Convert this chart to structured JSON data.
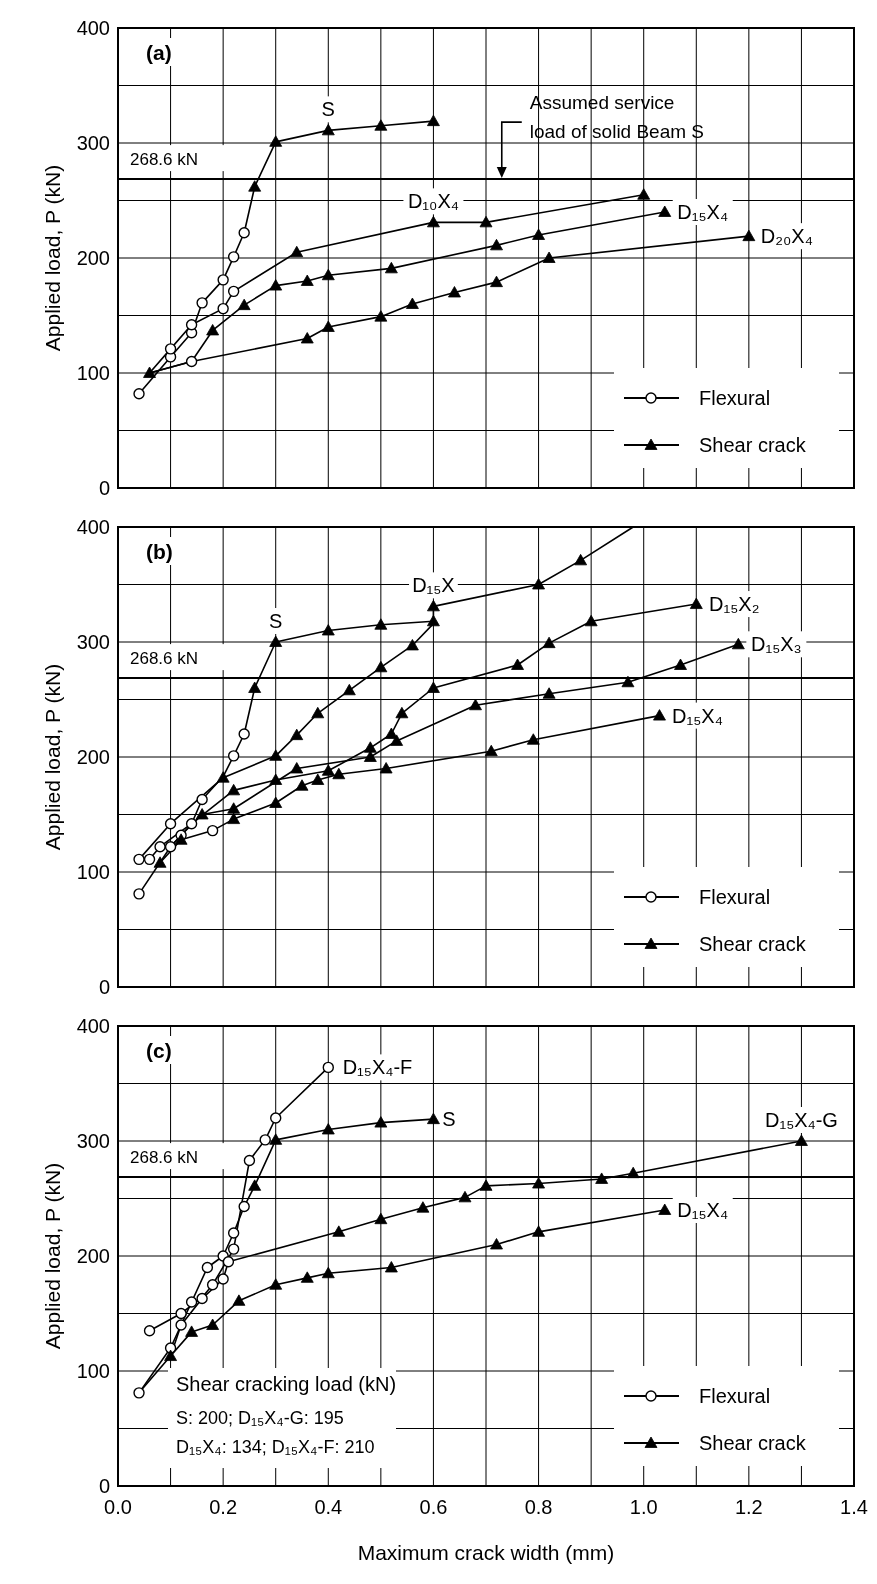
{
  "chart_data": [
    {
      "type": "line",
      "title": "(a)",
      "ylabel": "Applied load, P (kN)",
      "xlim": [
        0,
        1.4
      ],
      "ylim": [
        0,
        400
      ],
      "xticks": [
        0,
        0.1,
        0.2,
        0.3,
        0.4,
        0.5,
        0.6,
        0.7,
        0.8,
        0.9,
        1.0,
        1.1,
        1.2,
        1.3,
        1.4
      ],
      "yticks": [
        0,
        {
          "value": 50,
          "label": null
        },
        100,
        {
          "value": 150,
          "label": null
        },
        200,
        {
          "value": 250,
          "label": null
        },
        300,
        {
          "value": 350,
          "label": null
        },
        400
      ],
      "grid": true,
      "legend": "bottom right",
      "tick_labels": "y",
      "ref_lines": [
        {
          "axis": "y",
          "value": 268.6,
          "label": "268.6 kN",
          "color": "#000000"
        }
      ],
      "annotations": [
        {
          "text": "Assumed service\nload of solid Beam S",
          "x": 0.73,
          "y": 268.6
        },
        {
          "text": "S",
          "x": 0.4,
          "y": 311
        },
        {
          "text": "D₁₀X₄",
          "x": 0.6,
          "y": 231
        },
        {
          "text": "D₁₅X₄",
          "x": 1.04,
          "y": 240
        },
        {
          "text": "D₂₀X₄",
          "x": 1.2,
          "y": 219
        }
      ],
      "series": [
        {
          "type": "line",
          "marker": "none",
          "color": "#000000",
          "x": [
            0.04,
            0.1,
            0.14,
            0.16,
            0.2,
            0.22,
            0.24,
            0.26,
            0.3,
            0.4,
            0.5,
            0.6
          ],
          "values": [
            82,
            114,
            135,
            161,
            181,
            201,
            222,
            262,
            301,
            311,
            315,
            319
          ]
        },
        {
          "type": "line",
          "marker": "none",
          "color": "#000000",
          "x": [
            0.06,
            0.1,
            0.14,
            0.2,
            0.22,
            0.34,
            0.6,
            0.7,
            1.0
          ],
          "values": [
            100,
            121,
            142,
            156,
            171,
            205,
            231,
            231,
            255
          ]
        },
        {
          "type": "line",
          "marker": "none",
          "color": "#000000",
          "x": [
            0.06,
            0.14,
            0.18,
            0.24,
            0.3,
            0.36,
            0.4,
            0.52,
            0.72,
            0.8,
            1.04
          ],
          "values": [
            100,
            110,
            137,
            159,
            176,
            180,
            185,
            191,
            211,
            220,
            240
          ]
        },
        {
          "type": "line",
          "marker": "none",
          "color": "#000000",
          "x": [
            0.06,
            0.14,
            0.36,
            0.4,
            0.5,
            0.56,
            0.64,
            0.72,
            0.82,
            1.2
          ],
          "values": [
            100,
            110,
            130,
            140,
            149,
            160,
            170,
            179,
            200,
            219
          ]
        },
        {
          "type": "scatter",
          "name": "Flexural",
          "marker": "circle",
          "color": "#000000",
          "x": [
            0.04,
            0.1,
            0.14,
            0.16,
            0.2,
            0.22,
            0.24,
            0.1,
            0.14,
            0.2,
            0.22,
            0.14
          ],
          "values": [
            82,
            114,
            135,
            161,
            181,
            201,
            222,
            121,
            142,
            156,
            171,
            110
          ]
        },
        {
          "type": "scatter",
          "name": "Shear crack",
          "marker": "triangle",
          "color": "#000000",
          "x": [
            0.26,
            0.3,
            0.4,
            0.5,
            0.6,
            0.06,
            0.34,
            0.6,
            0.7,
            1.0,
            0.18,
            0.24,
            0.3,
            0.36,
            0.4,
            0.52,
            0.72,
            0.8,
            1.04,
            0.36,
            0.4,
            0.5,
            0.56,
            0.64,
            0.72,
            0.82,
            1.2
          ],
          "values": [
            262,
            301,
            311,
            315,
            319,
            100,
            205,
            231,
            231,
            255,
            137,
            159,
            176,
            180,
            185,
            191,
            211,
            220,
            240,
            130,
            140,
            149,
            160,
            170,
            179,
            200,
            219
          ]
        }
      ]
    },
    {
      "type": "line",
      "title": "(b)",
      "ylabel": "Applied load, P (kN)",
      "xlim": [
        0,
        1.4
      ],
      "ylim": [
        0,
        400
      ],
      "xticks": [
        0,
        0.1,
        0.2,
        0.3,
        0.4,
        0.5,
        0.6,
        0.7,
        0.8,
        0.9,
        1.0,
        1.1,
        1.2,
        1.3,
        1.4
      ],
      "yticks": [
        0,
        {
          "value": 50,
          "label": null
        },
        100,
        {
          "value": 150,
          "label": null
        },
        200,
        {
          "value": 250,
          "label": null
        },
        300,
        {
          "value": 350,
          "label": null
        },
        400
      ],
      "grid": true,
      "legend": "bottom right",
      "tick_labels": "y",
      "ref_lines": [
        {
          "axis": "y",
          "value": 268.6,
          "label": "268.6 kN",
          "color": "#000000"
        }
      ],
      "annotations": [
        {
          "text": "S",
          "x": 0.3,
          "y": 300
        },
        {
          "text": "D₁₅X",
          "x": 0.6,
          "y": 331
        },
        {
          "text": "D₁₅X₂",
          "x": 1.1,
          "y": 333
        },
        {
          "text": "D₁₅X₃",
          "x": 1.18,
          "y": 298
        },
        {
          "text": "D₁₅X₄",
          "x": 1.03,
          "y": 236
        }
      ],
      "series": [
        {
          "type": "line",
          "marker": "none",
          "color": "#000000",
          "x": [
            0.04,
            0.1,
            0.14,
            0.16,
            0.2,
            0.22,
            0.24,
            0.26,
            0.3,
            0.4,
            0.5,
            0.6
          ],
          "values": [
            81,
            122,
            142,
            163,
            183,
            201,
            220,
            260,
            300,
            310,
            315,
            318
          ]
        },
        {
          "type": "line",
          "marker": "none",
          "color": "#000000",
          "x": [
            0.04,
            0.1,
            0.2,
            0.3,
            0.34,
            0.38,
            0.44,
            0.5,
            0.56,
            0.6,
            0.6,
            0.8,
            0.88,
            0.98
          ],
          "values": [
            111,
            142,
            182,
            201,
            219,
            238,
            258,
            278,
            297,
            316,
            331,
            350,
            371,
            400
          ]
        },
        {
          "type": "line",
          "marker": "none",
          "color": "#000000",
          "x": [
            0.06,
            0.08,
            0.14,
            0.22,
            0.3,
            0.4,
            0.48,
            0.52,
            0.54,
            0.6,
            0.76,
            0.82,
            0.9,
            1.1
          ],
          "values": [
            111,
            122,
            142,
            171,
            180,
            188,
            208,
            220,
            238,
            260,
            280,
            299,
            318,
            333
          ]
        },
        {
          "type": "line",
          "marker": "none",
          "color": "#000000",
          "x": [
            0.1,
            0.12,
            0.16,
            0.22,
            0.34,
            0.48,
            0.53,
            0.68,
            0.82,
            0.97,
            1.07,
            1.18
          ],
          "values": [
            122,
            132,
            150,
            155,
            190,
            200,
            214,
            245,
            255,
            265,
            280,
            298
          ]
        },
        {
          "type": "line",
          "marker": "none",
          "color": "#000000",
          "x": [
            0.08,
            0.12,
            0.18,
            0.22,
            0.3,
            0.35,
            0.38,
            0.42,
            0.51,
            0.71,
            0.79,
            1.03
          ],
          "values": [
            108,
            128,
            136,
            146,
            160,
            175,
            180,
            185,
            190,
            205,
            215,
            236
          ]
        },
        {
          "type": "scatter",
          "name": "Flexural",
          "marker": "circle",
          "color": "#000000",
          "x": [
            0.04,
            0.1,
            0.14,
            0.16,
            0.22,
            0.24,
            0.04,
            0.1,
            0.06,
            0.08,
            0.12,
            0.18
          ],
          "values": [
            81,
            122,
            142,
            163,
            201,
            220,
            111,
            142,
            111,
            122,
            132,
            136
          ]
        },
        {
          "type": "scatter",
          "name": "Shear crack",
          "marker": "triangle",
          "color": "#000000",
          "x": [
            0.26,
            0.3,
            0.4,
            0.5,
            0.6,
            0.2,
            0.3,
            0.34,
            0.38,
            0.44,
            0.5,
            0.56,
            0.6,
            0.8,
            0.88,
            0.22,
            0.3,
            0.4,
            0.48,
            0.52,
            0.54,
            0.6,
            0.76,
            0.82,
            0.9,
            1.1,
            0.16,
            0.22,
            0.34,
            0.48,
            0.53,
            0.68,
            0.82,
            0.97,
            1.07,
            1.18,
            0.08,
            0.12,
            0.22,
            0.3,
            0.35,
            0.38,
            0.42,
            0.51,
            0.71,
            0.79,
            1.03
          ],
          "values": [
            260,
            300,
            310,
            315,
            318,
            182,
            201,
            219,
            238,
            258,
            278,
            297,
            331,
            350,
            371,
            171,
            180,
            188,
            208,
            220,
            238,
            260,
            280,
            299,
            318,
            333,
            150,
            155,
            190,
            200,
            214,
            245,
            255,
            265,
            280,
            298,
            108,
            128,
            146,
            160,
            175,
            180,
            185,
            190,
            205,
            215,
            236
          ]
        }
      ]
    },
    {
      "type": "line",
      "title": "(c)",
      "xlabel": "Maximum crack width (mm)",
      "ylabel": "Applied load, P (kN)",
      "xlim": [
        0,
        1.4
      ],
      "ylim": [
        0,
        400
      ],
      "xticks": [
        {
          "value": 0,
          "label": "0.0"
        },
        {
          "value": 0.1,
          "label": null
        },
        {
          "value": 0.2,
          "label": "0.2"
        },
        {
          "value": 0.3,
          "label": null
        },
        {
          "value": 0.4,
          "label": "0.4"
        },
        {
          "value": 0.5,
          "label": null
        },
        {
          "value": 0.6,
          "label": "0.6"
        },
        {
          "value": 0.7,
          "label": null
        },
        {
          "value": 0.8,
          "label": "0.8"
        },
        {
          "value": 0.9,
          "label": null
        },
        {
          "value": 1.0,
          "label": "1.0"
        },
        {
          "value": 1.1,
          "label": null
        },
        {
          "value": 1.2,
          "label": "1.2"
        },
        {
          "value": 1.3,
          "label": null
        },
        {
          "value": 1.4,
          "label": "1.4"
        }
      ],
      "yticks": [
        0,
        {
          "value": 50,
          "label": null
        },
        100,
        {
          "value": 150,
          "label": null
        },
        200,
        {
          "value": 250,
          "label": null
        },
        300,
        {
          "value": 350,
          "label": null
        },
        400
      ],
      "grid": true,
      "legend": "bottom right",
      "ref_lines": [
        {
          "axis": "y",
          "value": 268.6,
          "label": "268.6 kN",
          "color": "#000000"
        }
      ],
      "annotations": [
        {
          "text": "D₁₅X₄-F",
          "x": 0.4,
          "y": 364
        },
        {
          "text": "S",
          "x": 0.6,
          "y": 319
        },
        {
          "text": "D₁₅X₄-G",
          "x": 1.3,
          "y": 300
        },
        {
          "text": "D₁₅X₄",
          "x": 1.04,
          "y": 240
        },
        "Shear cracking load (kN)\nS: 200; D₁₅X₄-G: 195\nD₁₅X₄: 134; D₁₅X₄-F: 210"
      ],
      "series": [
        {
          "type": "line",
          "marker": "none",
          "color": "#000000",
          "x": [
            0.04,
            0.1,
            0.12,
            0.14,
            0.17,
            0.2,
            0.22,
            0.24,
            0.26,
            0.3,
            0.4,
            0.5,
            0.6
          ],
          "values": [
            81,
            120,
            140,
            160,
            190,
            200,
            220,
            243,
            261,
            301,
            310,
            316,
            319
          ]
        },
        {
          "type": "line",
          "marker": "none",
          "color": "#000000",
          "x": [
            0.06,
            0.12,
            0.16,
            0.18,
            0.22,
            0.25,
            0.28,
            0.3,
            0.4
          ],
          "values": [
            135,
            150,
            164,
            175,
            206,
            283,
            301,
            320,
            364
          ]
        },
        {
          "type": "line",
          "marker": "none",
          "color": "#000000",
          "x": [
            0.1,
            0.12,
            0.16,
            0.2,
            0.21,
            0.42,
            0.5,
            0.58,
            0.66,
            0.7,
            0.8,
            0.92,
            0.98,
            1.3
          ],
          "values": [
            113,
            140,
            163,
            180,
            195,
            221,
            232,
            242,
            251,
            261,
            263,
            267,
            272,
            300
          ]
        },
        {
          "type": "line",
          "marker": "none",
          "color": "#000000",
          "x": [
            0.04,
            0.1,
            0.14,
            0.18,
            0.23,
            0.3,
            0.36,
            0.4,
            0.52,
            0.72,
            0.8,
            1.04
          ],
          "values": [
            81,
            113,
            134,
            140,
            161,
            175,
            181,
            185,
            190,
            210,
            221,
            240
          ]
        },
        {
          "type": "scatter",
          "name": "Flexural",
          "marker": "circle",
          "color": "#000000",
          "x": [
            0.04,
            0.1,
            0.12,
            0.14,
            0.17,
            0.2,
            0.22,
            0.24,
            0.06,
            0.12,
            0.18,
            0.22,
            0.25,
            0.28,
            0.3,
            0.4,
            0.16,
            0.2,
            0.21
          ],
          "values": [
            81,
            120,
            140,
            160,
            190,
            200,
            220,
            243,
            135,
            150,
            175,
            206,
            283,
            301,
            320,
            364,
            163,
            180,
            195
          ]
        },
        {
          "type": "scatter",
          "name": "Shear crack",
          "marker": "triangle",
          "color": "#000000",
          "x": [
            0.26,
            0.3,
            0.4,
            0.5,
            0.6,
            0.42,
            0.5,
            0.58,
            0.66,
            0.7,
            0.8,
            0.92,
            0.98,
            1.3,
            0.1,
            0.14,
            0.18,
            0.23,
            0.3,
            0.36,
            0.4,
            0.52,
            0.72,
            0.8,
            1.04
          ],
          "values": [
            261,
            301,
            310,
            316,
            319,
            221,
            232,
            242,
            251,
            261,
            263,
            267,
            272,
            300,
            113,
            134,
            140,
            161,
            175,
            181,
            185,
            190,
            210,
            221,
            240
          ]
        }
      ]
    }
  ]
}
